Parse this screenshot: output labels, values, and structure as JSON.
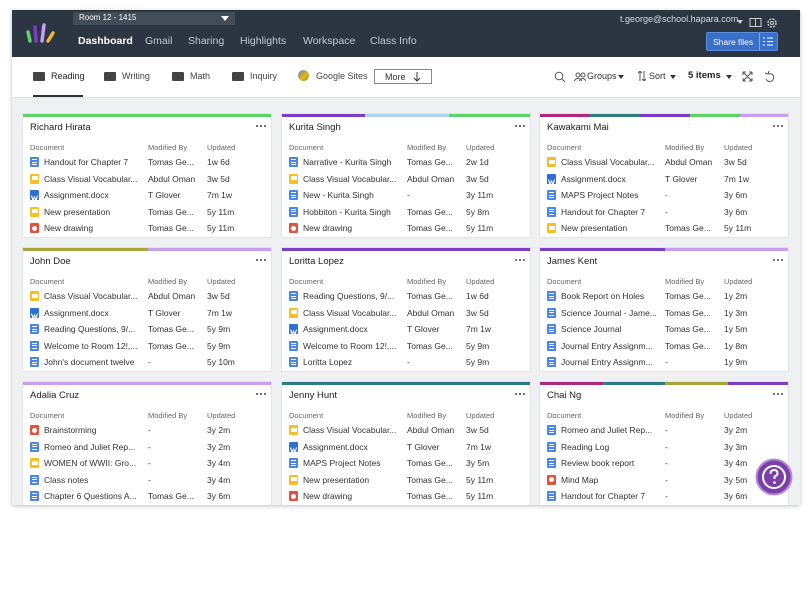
{
  "header": {
    "room": "Room 12 - 1415",
    "nav": [
      "Dashboard",
      "Gmail",
      "Sharing",
      "Highlights",
      "Workspace",
      "Class Info"
    ],
    "user": "t.george@school.hapara.com",
    "share_button": "Share files"
  },
  "toolbar": {
    "tabs": [
      "Reading",
      "Writing",
      "Math",
      "Inquiry",
      "Google Sites"
    ],
    "more": "More",
    "groups": "Groups",
    "sort": "Sort",
    "item_count": "5 items"
  },
  "columns": [
    "Document",
    "Modified By",
    "Updated"
  ],
  "students": [
    {
      "name": "Richard Hirata",
      "documents": [
        [
          "Handout for Chapter 7",
          "Tomas Ge...",
          "1w 6d"
        ],
        [
          "Class Visual Vocabular...",
          "Abdul Oman",
          "3w 5d"
        ],
        [
          "Assignment.docx",
          "T Glover",
          "7m 1w"
        ],
        [
          "New presentation",
          "Tomas Ge...",
          "5y 11m"
        ],
        [
          "New drawing",
          "Tomas Ge...",
          "5y 11m"
        ]
      ]
    },
    {
      "name": "Kurita Singh",
      "documents": [
        [
          "Narrative - Kurita Singh",
          "Tomas Ge...",
          "2w 1d"
        ],
        [
          "Class Visual Vocabular...",
          "Abdul Oman",
          "3w 5d"
        ],
        [
          "New - Kurita Singh",
          "-",
          "3y 11m"
        ],
        [
          "Hobbiton - Kurita Singh",
          "Tomas Ge...",
          "5y 8m"
        ],
        [
          "New drawing",
          "Tomas Ge...",
          "5y 11m"
        ]
      ]
    },
    {
      "name": "Kawakami Mai",
      "documents": [
        [
          "Class Visual Vocabular...",
          "Abdul Oman",
          "3w 5d"
        ],
        [
          "Assignment.docx",
          "T Glover",
          "7m 1w"
        ],
        [
          "MAPS Project Notes",
          "-",
          "3y 6m"
        ],
        [
          "Handout for Chapter 7",
          "-",
          "3y 6m"
        ],
        [
          "New presentation",
          "Tomas Ge...",
          "5y 11m"
        ]
      ]
    },
    {
      "name": "John Doe",
      "documents": [
        [
          "Class Visual Vocabular...",
          "Abdul Oman",
          "3w 5d"
        ],
        [
          "Assignment.docx",
          "T Glover",
          "7m 1w"
        ],
        [
          "Reading Questions, 9/...",
          "Tomas Ge...",
          "5y 9m"
        ],
        [
          "Welcome to Room 12!,...",
          "Tomas Ge...",
          "5y 9m"
        ],
        [
          "John's document twelve",
          "-",
          "5y 10m"
        ]
      ]
    },
    {
      "name": "Loritta Lopez",
      "documents": [
        [
          "Reading Questions, 9/...",
          "Tomas Ge...",
          "1w 6d"
        ],
        [
          "Class Visual Vocabular...",
          "Abdul Oman",
          "3w 5d"
        ],
        [
          "Assignment.docx",
          "T Glover",
          "7m 1w"
        ],
        [
          "Welcome to Room 12!,...",
          "Tomas Ge...",
          "5y 9m"
        ],
        [
          "Loritta Lopez",
          "-",
          "5y 9m"
        ]
      ]
    },
    {
      "name": "James Kent",
      "documents": [
        [
          "Book Report on Holes",
          "Tomas Ge...",
          "1y 2m"
        ],
        [
          "Science Journal - Jame...",
          "Tomas Ge...",
          "1y 3m"
        ],
        [
          "Science Journal",
          "Tomas Ge...",
          "1y 5m"
        ],
        [
          "Journal Entry Assignm...",
          "Tomas Ge...",
          "1y 8m"
        ],
        [
          "Journal Entry Assignm...",
          "-",
          "1y 9m"
        ]
      ]
    },
    {
      "name": "Adalia Cruz",
      "documents": [
        [
          "Brainstorming",
          "-",
          "3y 2m"
        ],
        [
          "Romeo and Juliet Rep...",
          "-",
          "3y 2m"
        ],
        [
          "WOMEN of WWII: Gro...",
          "-",
          "3y 4m"
        ],
        [
          "Class notes",
          "-",
          "3y 4m"
        ],
        [
          "Chapter 6 Questions A...",
          "Tomas Ge...",
          "3y 6m"
        ]
      ]
    },
    {
      "name": "Jenny Hunt",
      "documents": [
        [
          "Class Visual Vocabular...",
          "Abdul Oman",
          "3w 5d"
        ],
        [
          "Assignment.docx",
          "T Glover",
          "7m 1w"
        ],
        [
          "MAPS Project Notes",
          "Tomas Ge...",
          "3y 5m"
        ],
        [
          "New presentation",
          "Tomas Ge...",
          "5y 11m"
        ],
        [
          "New drawing",
          "Tomas Ge...",
          "5y 11m"
        ]
      ]
    },
    {
      "name": "Chai Ng",
      "documents": [
        [
          "Romeo and Juliet Rep...",
          "-",
          "3y 2m"
        ],
        [
          "Reading Log",
          "-",
          "3y 3m"
        ],
        [
          "Review book report",
          "-",
          "3y 4m"
        ],
        [
          "Mind Map",
          "-",
          "3y 5m"
        ],
        [
          "Handout for Chapter 7",
          "-",
          "3y 6m"
        ]
      ]
    }
  ]
}
